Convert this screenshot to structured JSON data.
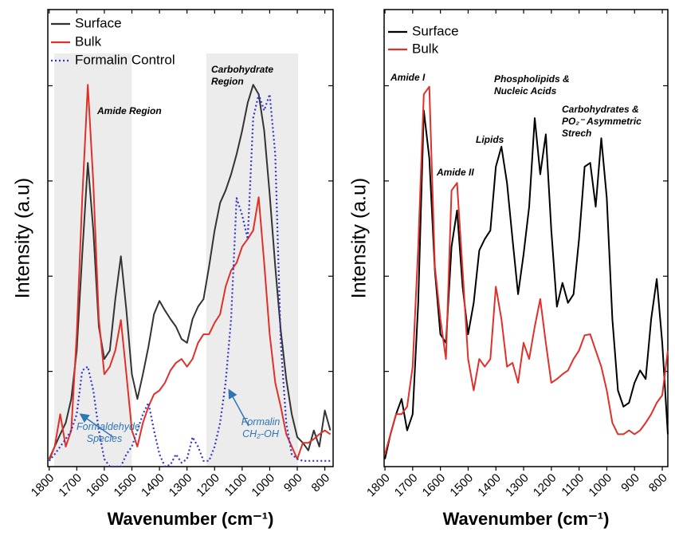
{
  "chart_data": [
    {
      "type": "line",
      "ylabel": "Intensity (a.u)",
      "xlabel": "Wavenumber (cm⁻¹)",
      "xlim": [
        1805,
        770
      ],
      "ylim": [
        0,
        4.8
      ],
      "xticks": [
        1800,
        1700,
        1600,
        1500,
        1400,
        1300,
        1200,
        1100,
        1000,
        900,
        800
      ],
      "yticks": [
        1,
        2,
        3,
        4
      ],
      "legend": "upper left",
      "x": [
        1800,
        1780,
        1760,
        1740,
        1720,
        1700,
        1680,
        1660,
        1640,
        1620,
        1600,
        1580,
        1560,
        1540,
        1520,
        1500,
        1480,
        1460,
        1440,
        1420,
        1400,
        1380,
        1360,
        1340,
        1320,
        1300,
        1280,
        1260,
        1240,
        1220,
        1200,
        1180,
        1160,
        1140,
        1120,
        1100,
        1080,
        1060,
        1040,
        1020,
        1000,
        980,
        960,
        940,
        920,
        900,
        880,
        860,
        840,
        820,
        800,
        780
      ],
      "series": [
        {
          "name": "Surface",
          "color": "#333333",
          "linestyle": "solid",
          "values": [
            0.08,
            0.21,
            0.34,
            0.46,
            0.71,
            1.22,
            2.23,
            3.19,
            2.48,
            1.47,
            1.13,
            1.22,
            1.76,
            2.21,
            1.64,
            0.97,
            0.71,
            0.97,
            1.26,
            1.6,
            1.74,
            1.64,
            1.55,
            1.47,
            1.34,
            1.3,
            1.55,
            1.68,
            1.76,
            2.1,
            2.48,
            2.77,
            2.9,
            3.07,
            3.28,
            3.53,
            3.82,
            4.01,
            3.91,
            3.53,
            2.86,
            2.1,
            1.43,
            0.92,
            0.55,
            0.31,
            0.25,
            0.17,
            0.38,
            0.21,
            0.59,
            0.38
          ]
        },
        {
          "name": "Bulk",
          "color": "#e0302a",
          "linestyle": "solid",
          "values": [
            0.06,
            0.21,
            0.55,
            0.21,
            0.38,
            1.39,
            2.82,
            4.01,
            2.98,
            1.55,
            0.97,
            1.05,
            1.22,
            1.54,
            0.97,
            0.38,
            0.21,
            0.46,
            0.63,
            0.76,
            0.8,
            0.88,
            1.01,
            1.09,
            1.13,
            1.05,
            1.13,
            1.3,
            1.39,
            1.39,
            1.51,
            1.6,
            1.89,
            2.06,
            2.14,
            2.31,
            2.39,
            2.48,
            2.83,
            2.14,
            1.39,
            0.88,
            0.63,
            0.34,
            0.21,
            0.08,
            0.25,
            0.25,
            0.29,
            0.34,
            0.38,
            0.34
          ]
        },
        {
          "name": "Formalin Control",
          "color": "#3535c8",
          "linestyle": "dotted",
          "values": [
            0.06,
            0.13,
            0.21,
            0.29,
            0.38,
            0.55,
            1.01,
            1.05,
            0.8,
            0.38,
            0.08,
            0,
            0,
            0,
            0.13,
            0.21,
            0.38,
            0.55,
            0.67,
            0.38,
            0.13,
            0,
            0.02,
            0.13,
            0.04,
            0.08,
            0.31,
            0.21,
            0.06,
            0.06,
            0.21,
            0.46,
            0.88,
            1.55,
            2.82,
            2.64,
            2.39,
            3.66,
            3.91,
            3.74,
            3.91,
            3.28,
            1.3,
            0.46,
            0.13,
            0.08,
            0.06,
            0.06,
            0.06,
            0.06,
            0.06,
            0.06
          ]
        }
      ],
      "regions": [
        {
          "label": "Amide Region",
          "xspan": [
            1782,
            1500
          ]
        },
        {
          "label": "Carbohydrate Region",
          "xspan": [
            1230,
            897
          ]
        }
      ],
      "annotations": [
        {
          "text": "Formaldehyde Species",
          "color": "#2e75b6"
        },
        {
          "text": "Formalin CH₂-OH",
          "color": "#2e75b6"
        }
      ]
    },
    {
      "type": "line",
      "ylabel": "Intensity (a.u)",
      "xlabel": "Wavenumber (cm⁻¹)",
      "xlim": [
        1803,
        780
      ],
      "ylim": [
        0,
        4.8
      ],
      "xticks": [
        1800,
        1700,
        1600,
        1500,
        1400,
        1300,
        1200,
        1100,
        1000,
        900,
        800
      ],
      "yticks": [
        1,
        2,
        3,
        4
      ],
      "legend": "upper left",
      "x": [
        1800,
        1780,
        1760,
        1740,
        1720,
        1700,
        1680,
        1660,
        1640,
        1620,
        1600,
        1580,
        1560,
        1540,
        1520,
        1500,
        1480,
        1460,
        1440,
        1420,
        1400,
        1380,
        1360,
        1340,
        1320,
        1300,
        1280,
        1260,
        1240,
        1220,
        1200,
        1180,
        1160,
        1140,
        1120,
        1100,
        1080,
        1060,
        1040,
        1020,
        1000,
        980,
        960,
        940,
        920,
        900,
        880,
        860,
        840,
        820,
        800,
        780
      ],
      "series": [
        {
          "name": "Surface",
          "color": "#000000",
          "linestyle": "solid",
          "values": [
            0.08,
            0.34,
            0.55,
            0.71,
            0.38,
            0.55,
            1.72,
            3.74,
            3.24,
            2.06,
            1.39,
            1.3,
            2.31,
            2.69,
            1.89,
            1.39,
            1.72,
            2.27,
            2.39,
            2.48,
            3.15,
            3.36,
            2.98,
            2.39,
            1.81,
            2.23,
            2.73,
            3.66,
            3.07,
            3.49,
            2.48,
            1.68,
            1.93,
            1.72,
            1.81,
            2.39,
            3.15,
            3.19,
            2.73,
            3.45,
            2.82,
            1.55,
            0.8,
            0.63,
            0.67,
            0.88,
            1.01,
            0.92,
            1.55,
            1.97,
            1.3,
            0.34
          ]
        },
        {
          "name": "Bulk",
          "color": "#e0302a",
          "linestyle": "solid",
          "values": [
            0.13,
            0.34,
            0.55,
            0.55,
            0.63,
            1.05,
            2.31,
            3.91,
            3.99,
            2.1,
            1.55,
            1.13,
            2.9,
            2.98,
            2.06,
            1.13,
            0.8,
            1.13,
            1.05,
            1.13,
            1.89,
            1.55,
            1.05,
            1.09,
            0.88,
            1.3,
            1.13,
            1.47,
            1.76,
            1.3,
            0.88,
            0.92,
            0.97,
            1.01,
            1.13,
            1.22,
            1.38,
            1.39,
            1.22,
            1.05,
            0.8,
            0.46,
            0.34,
            0.34,
            0.38,
            0.34,
            0.38,
            0.46,
            0.55,
            0.67,
            0.75,
            1.22
          ]
        }
      ],
      "annotations": [
        {
          "text": "Amide I"
        },
        {
          "text": "Amide II"
        },
        {
          "text": "Lipids"
        },
        {
          "text": "Phospholipids & Nucleic Acids"
        },
        {
          "text": "Carbohydrates & PO₂⁻ Asymmetric Strech"
        }
      ]
    }
  ]
}
